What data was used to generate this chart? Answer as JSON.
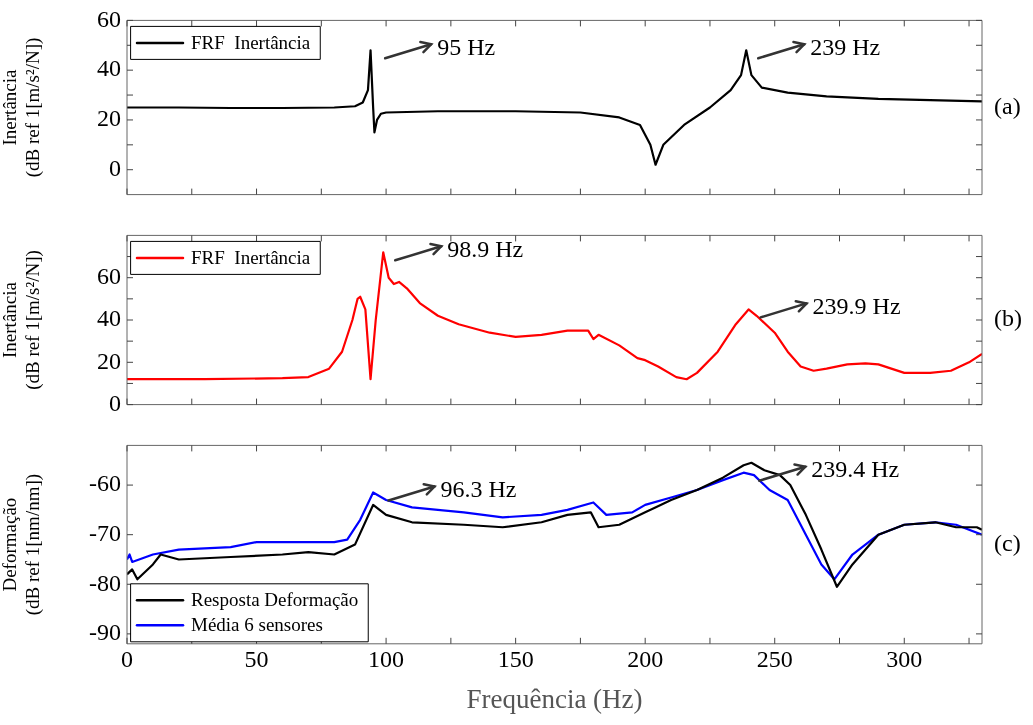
{
  "chart_data": [
    {
      "type": "line",
      "ylabel": "Inertância\n(dB ref 1[m/s²/N])",
      "xlim": [
        0,
        330
      ],
      "xticks": [
        0,
        {
          "value": 25,
          "label": null
        },
        50,
        {
          "value": 75,
          "label": null
        },
        100,
        {
          "value": 125,
          "label": null
        },
        150,
        {
          "value": 175,
          "label": null
        },
        200,
        {
          "value": 225,
          "label": null
        },
        250,
        {
          "value": 275,
          "label": null
        },
        300,
        {
          "value": 325,
          "label": null
        }
      ],
      "ylim": [
        -10,
        60
      ],
      "yticks": [
        0,
        {
          "value": 10,
          "label": null
        },
        20,
        {
          "value": 30,
          "label": null
        },
        40,
        {
          "value": 50,
          "label": null
        },
        60
      ],
      "tick_labels": "y",
      "grid": false,
      "legend": "top left",
      "marker": "none",
      "line_style": "solid",
      "x": [
        0,
        20,
        40,
        60,
        80,
        88,
        91,
        93,
        94,
        95,
        95.5,
        96.5,
        98,
        100,
        120,
        150,
        175,
        190,
        198,
        202,
        204,
        207,
        215,
        225,
        233,
        237,
        239,
        241,
        245,
        255,
        270,
        290,
        310,
        330
      ],
      "series": [
        {
          "name": "FRF  Inertância",
          "color": "#000000",
          "values": [
            25,
            25,
            24.8,
            24.8,
            25,
            25.5,
            27,
            32,
            48,
            25,
            15,
            20,
            22.5,
            23,
            23.5,
            23.5,
            23,
            21,
            18,
            10,
            2,
            10,
            18,
            25,
            32,
            38,
            48,
            38,
            33,
            31,
            29.5,
            28.5,
            28,
            27.5
          ]
        }
      ],
      "annotations": [
        {
          "text": "95 Hz",
          "x": 95,
          "y": 48
        },
        {
          "text": "239 Hz",
          "x": 239,
          "y": 48
        },
        "(a)"
      ]
    },
    {
      "type": "line",
      "ylabel": "Inertância\n(dB ref 1[m/s²/N])",
      "xlim": [
        0,
        330
      ],
      "xticks": [
        0,
        {
          "value": 25,
          "label": null
        },
        50,
        {
          "value": 75,
          "label": null
        },
        100,
        {
          "value": 125,
          "label": null
        },
        150,
        {
          "value": 175,
          "label": null
        },
        200,
        {
          "value": 225,
          "label": null
        },
        250,
        {
          "value": 275,
          "label": null
        },
        300,
        {
          "value": 325,
          "label": null
        }
      ],
      "ylim": [
        0,
        80
      ],
      "yticks": [
        0,
        {
          "value": 10,
          "label": null
        },
        20,
        {
          "value": 30,
          "label": null
        },
        40,
        {
          "value": 50,
          "label": null
        },
        60,
        {
          "value": 70,
          "label": null
        }
      ],
      "tick_labels": "y",
      "grid": false,
      "legend": "top left",
      "marker": "none",
      "line_style": "solid",
      "x": [
        0,
        30,
        60,
        70,
        78,
        83,
        87,
        89,
        90,
        92,
        94,
        96,
        98.9,
        101,
        103,
        105,
        108,
        113,
        120,
        128,
        140,
        150,
        160,
        170,
        178,
        180,
        182,
        190,
        197,
        200,
        205,
        212,
        216,
        220,
        228,
        235,
        239.9,
        243,
        250,
        255,
        260,
        265,
        270,
        278,
        285,
        290,
        295,
        300,
        310,
        318,
        325,
        330
      ],
      "series": [
        {
          "name": "FRF  Inertância",
          "color": "#ff0000",
          "values": [
            12,
            12,
            12.5,
            13,
            17,
            25,
            40,
            50,
            51,
            45,
            12,
            40,
            72,
            60,
            57,
            58,
            55,
            48,
            42,
            38,
            34,
            32,
            33,
            35,
            35,
            31,
            33,
            28,
            22,
            21,
            18,
            13,
            12,
            15,
            25,
            38,
            45,
            42,
            34,
            25,
            18,
            16,
            17,
            19,
            19.5,
            19,
            17,
            15,
            15,
            16,
            20,
            24
          ]
        }
      ],
      "annotations": [
        {
          "text": "98.9 Hz",
          "x": 98.9,
          "y": 72
        },
        {
          "text": "239.9 Hz",
          "x": 239.9,
          "y": 45
        },
        "(b)"
      ]
    },
    {
      "type": "line",
      "ylabel": "Deformação\n(dB ref 1[nm/nm])",
      "xlabel": "Frequência (Hz)",
      "xlim": [
        0,
        330
      ],
      "xticks": [
        0,
        {
          "value": 25,
          "label": null
        },
        50,
        {
          "value": 75,
          "label": null
        },
        100,
        {
          "value": 125,
          "label": null
        },
        150,
        {
          "value": 175,
          "label": null
        },
        200,
        {
          "value": 225,
          "label": null
        },
        250,
        {
          "value": 275,
          "label": null
        },
        300,
        {
          "value": 325,
          "label": null
        }
      ],
      "ylim": [
        -92,
        -52
      ],
      "yticks": [
        -90,
        -80,
        -70,
        -60
      ],
      "grid": false,
      "legend": "bottom left",
      "marker": "none",
      "line_style": "solid",
      "series": [
        {
          "name": "Resposta Deformação",
          "color": "#000000",
          "x": [
            0,
            2,
            4,
            10,
            13,
            20,
            40,
            60,
            70,
            80,
            88,
            95,
            100,
            110,
            130,
            145,
            160,
            170,
            179,
            182,
            190,
            200,
            210,
            220,
            230,
            238,
            241,
            246,
            252,
            256,
            262,
            268,
            274,
            280,
            290,
            300,
            312,
            320,
            328,
            330
          ],
          "values": [
            -78,
            -77,
            -79,
            -76,
            -74,
            -75,
            -74.5,
            -74,
            -73.5,
            -74,
            -72,
            -64,
            -66,
            -67.5,
            -68,
            -68.5,
            -67.5,
            -66,
            -65.5,
            -68.5,
            -68,
            -65.5,
            -63,
            -61,
            -58.5,
            -56,
            -55.5,
            -57,
            -58,
            -60,
            -66,
            -73,
            -80.5,
            -76,
            -70,
            -68,
            -67.5,
            -68.5,
            -68.5,
            -69
          ]
        },
        {
          "name": "Média 6 sensores",
          "color": "#0000ff",
          "x": [
            0,
            1,
            2,
            10,
            20,
            40,
            50,
            80,
            85,
            90,
            95,
            100,
            110,
            130,
            145,
            160,
            170,
            180,
            185,
            195,
            200,
            210,
            220,
            230,
            238,
            242,
            248,
            255,
            262,
            268,
            273,
            280,
            290,
            300,
            312,
            320,
            330
          ],
          "values": [
            -75,
            -74,
            -75.5,
            -74,
            -73,
            -72.5,
            -71.5,
            -71.5,
            -71,
            -67,
            -61.5,
            -63,
            -64.5,
            -65.5,
            -66.5,
            -66,
            -65,
            -63.5,
            -66,
            -65.5,
            -64,
            -62.5,
            -61,
            -59,
            -57.5,
            -58,
            -61,
            -63,
            -70,
            -76,
            -79,
            -74,
            -70,
            -68,
            -67.5,
            -68,
            -70
          ]
        }
      ],
      "annotations": [
        {
          "text": "96.3 Hz",
          "x": 96.3,
          "y": -61.5
        },
        {
          "text": "239.4 Hz",
          "x": 239.4,
          "y": -57.5
        },
        "(c)"
      ]
    }
  ]
}
